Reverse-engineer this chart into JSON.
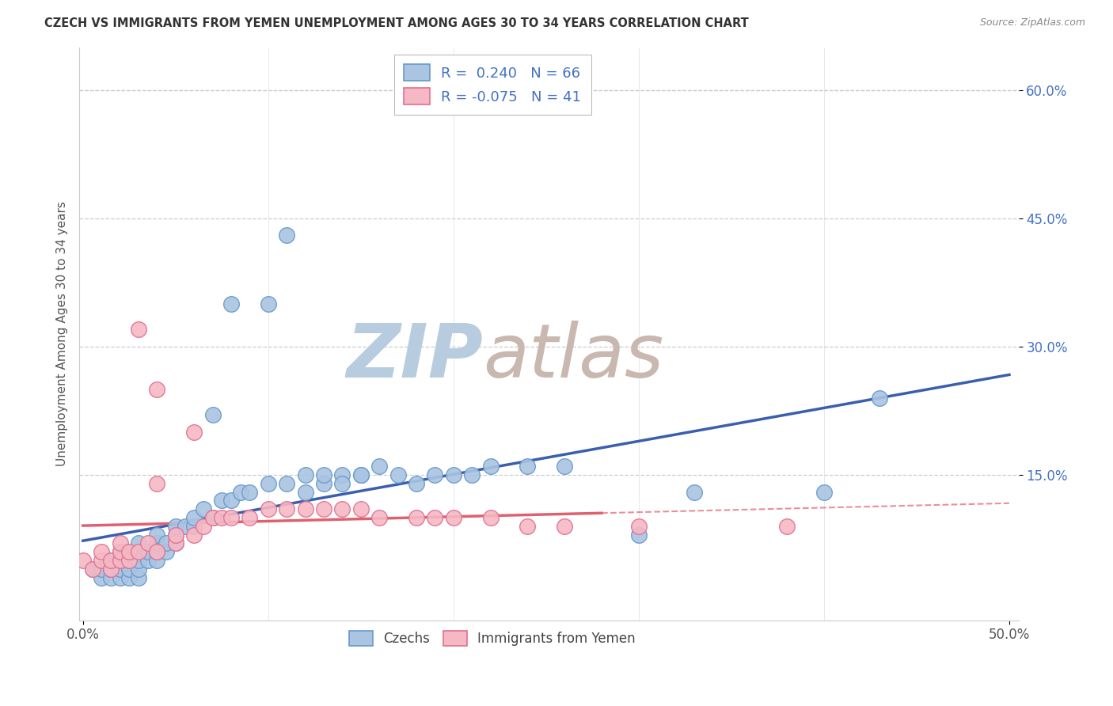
{
  "title": "CZECH VS IMMIGRANTS FROM YEMEN UNEMPLOYMENT AMONG AGES 30 TO 34 YEARS CORRELATION CHART",
  "source": "Source: ZipAtlas.com",
  "ylabel": "Unemployment Among Ages 30 to 34 years",
  "r_czech": 0.24,
  "n_czech": 66,
  "r_yemen": -0.075,
  "n_yemen": 41,
  "ytick_values": [
    0.15,
    0.3,
    0.45,
    0.6
  ],
  "xlim": [
    0.0,
    0.5
  ],
  "ylim": [
    -0.02,
    0.65
  ],
  "czech_color": "#aac4e2",
  "czech_edge_color": "#6699cc",
  "yemen_color": "#f5b8c4",
  "yemen_edge_color": "#e07090",
  "trend_czech_color": "#3a5fad",
  "trend_yemen_color": "#e06070",
  "watermark_zip_color": "#b8cce0",
  "watermark_atlas_color": "#c8b8b0",
  "legend_r_color": "#4472c4",
  "czech_x": [
    0.005,
    0.01,
    0.01,
    0.015,
    0.015,
    0.015,
    0.02,
    0.02,
    0.02,
    0.02,
    0.025,
    0.025,
    0.025,
    0.025,
    0.03,
    0.03,
    0.03,
    0.03,
    0.03,
    0.035,
    0.035,
    0.04,
    0.04,
    0.04,
    0.04,
    0.045,
    0.045,
    0.05,
    0.05,
    0.05,
    0.055,
    0.06,
    0.06,
    0.065,
    0.07,
    0.07,
    0.075,
    0.08,
    0.08,
    0.085,
    0.09,
    0.1,
    0.1,
    0.11,
    0.11,
    0.12,
    0.12,
    0.13,
    0.13,
    0.14,
    0.14,
    0.15,
    0.15,
    0.16,
    0.17,
    0.18,
    0.19,
    0.2,
    0.21,
    0.22,
    0.24,
    0.26,
    0.3,
    0.33,
    0.4,
    0.43
  ],
  "czech_y": [
    0.04,
    0.03,
    0.04,
    0.03,
    0.04,
    0.05,
    0.03,
    0.04,
    0.05,
    0.06,
    0.03,
    0.04,
    0.05,
    0.06,
    0.03,
    0.04,
    0.05,
    0.06,
    0.07,
    0.05,
    0.06,
    0.05,
    0.06,
    0.07,
    0.08,
    0.06,
    0.07,
    0.07,
    0.08,
    0.09,
    0.09,
    0.09,
    0.1,
    0.11,
    0.1,
    0.22,
    0.12,
    0.12,
    0.35,
    0.13,
    0.13,
    0.14,
    0.35,
    0.14,
    0.43,
    0.13,
    0.15,
    0.14,
    0.15,
    0.15,
    0.14,
    0.15,
    0.15,
    0.16,
    0.15,
    0.14,
    0.15,
    0.15,
    0.15,
    0.16,
    0.16,
    0.16,
    0.08,
    0.13,
    0.13,
    0.24
  ],
  "yemen_x": [
    0.0,
    0.005,
    0.01,
    0.01,
    0.015,
    0.015,
    0.02,
    0.02,
    0.02,
    0.025,
    0.025,
    0.03,
    0.03,
    0.035,
    0.04,
    0.04,
    0.04,
    0.05,
    0.05,
    0.06,
    0.06,
    0.065,
    0.07,
    0.075,
    0.08,
    0.09,
    0.1,
    0.11,
    0.12,
    0.13,
    0.14,
    0.15,
    0.16,
    0.18,
    0.19,
    0.2,
    0.22,
    0.24,
    0.26,
    0.3,
    0.38
  ],
  "yemen_y": [
    0.05,
    0.04,
    0.05,
    0.06,
    0.04,
    0.05,
    0.05,
    0.06,
    0.07,
    0.05,
    0.06,
    0.06,
    0.32,
    0.07,
    0.06,
    0.14,
    0.25,
    0.07,
    0.08,
    0.08,
    0.2,
    0.09,
    0.1,
    0.1,
    0.1,
    0.1,
    0.11,
    0.11,
    0.11,
    0.11,
    0.11,
    0.11,
    0.1,
    0.1,
    0.1,
    0.1,
    0.1,
    0.09,
    0.09,
    0.09,
    0.09
  ]
}
